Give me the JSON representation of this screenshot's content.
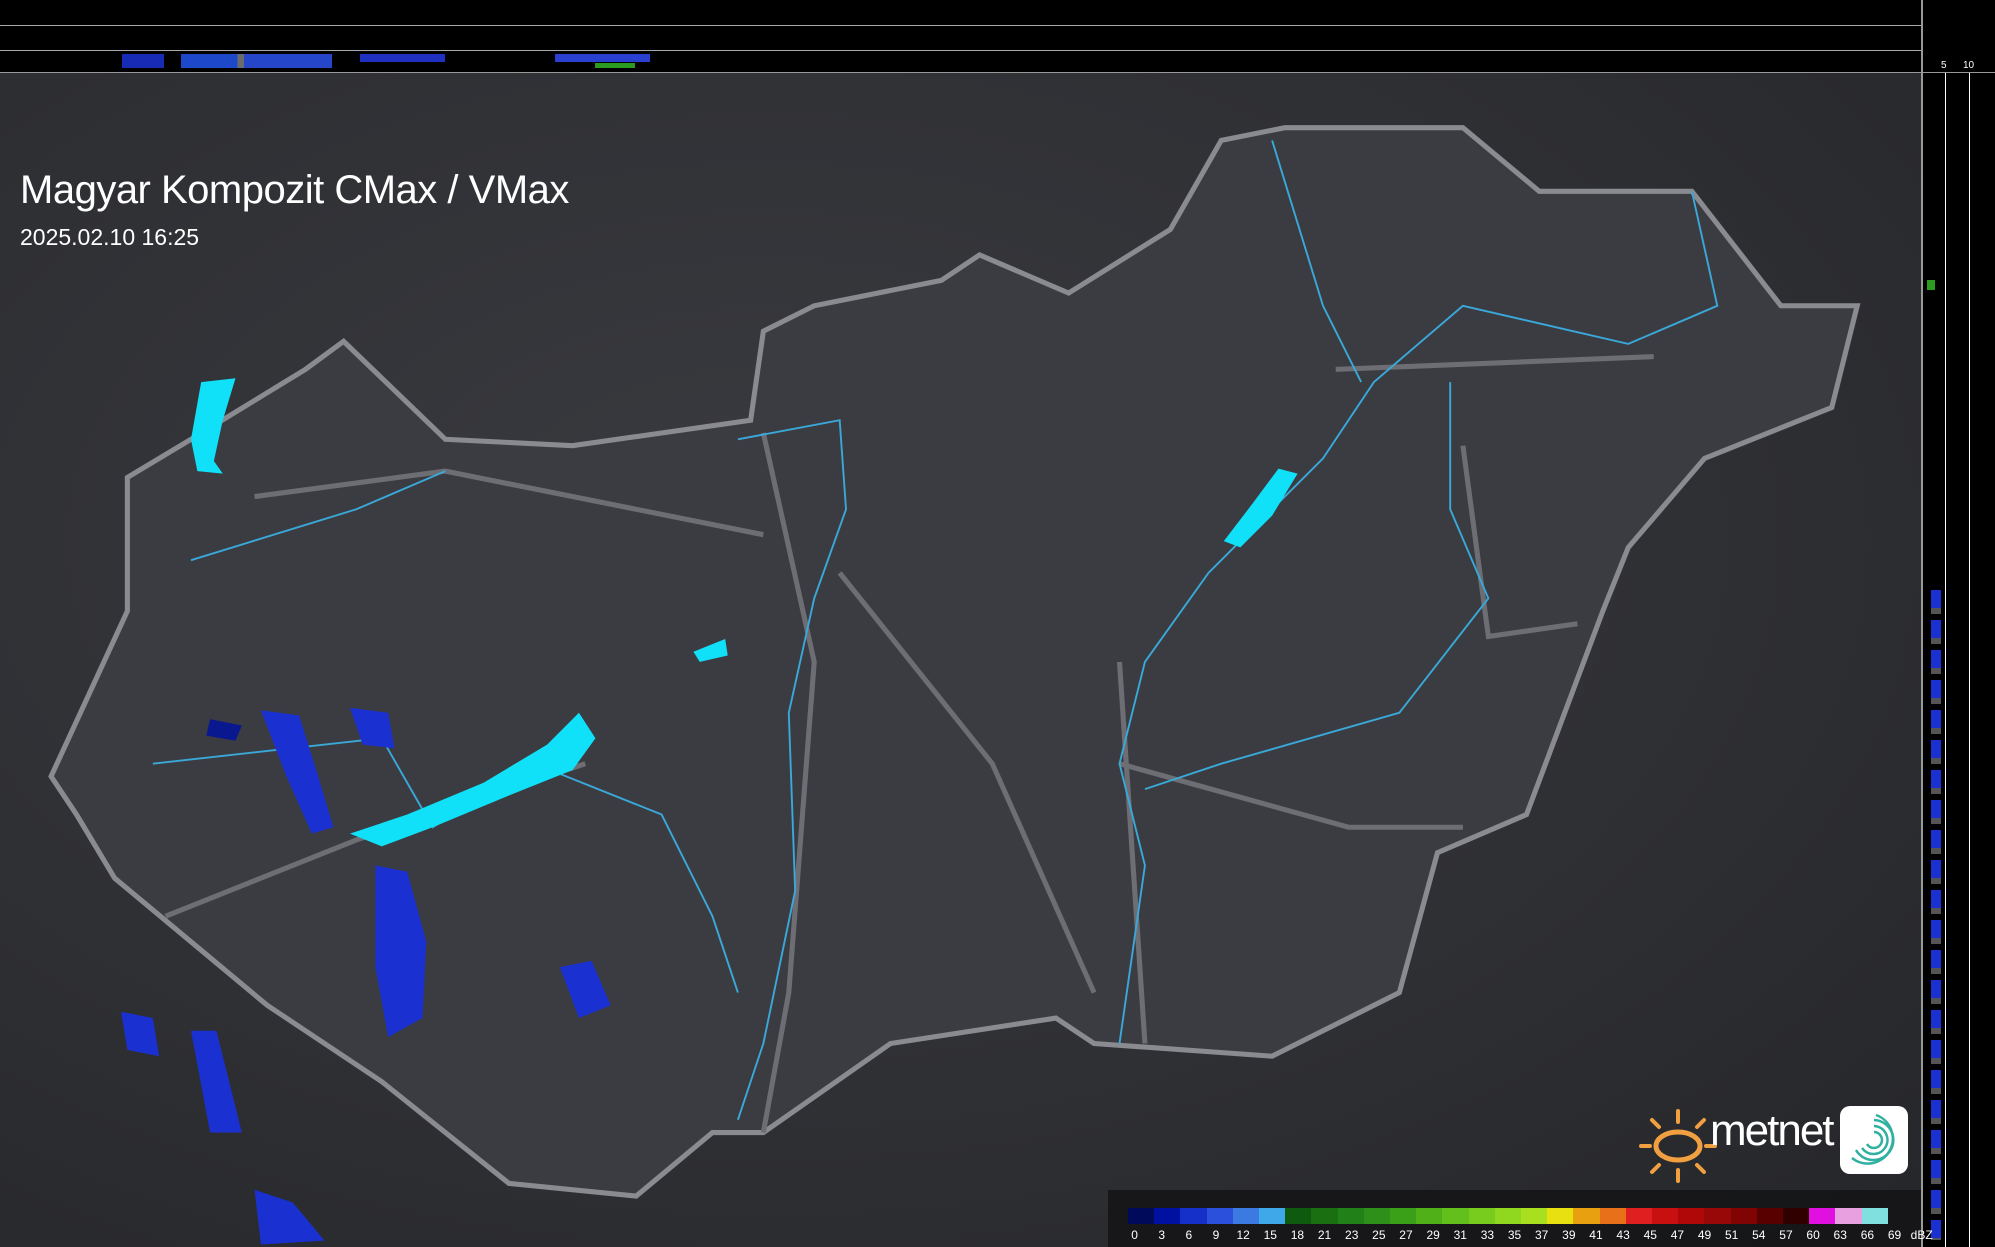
{
  "header": {
    "title": "Magyar Kompozit CMax / VMax",
    "timestamp": "2025.02.10 16:25"
  },
  "profile_axes": {
    "top_ticks": [
      "10",
      "5"
    ],
    "side_ticks": [
      "5",
      "10"
    ]
  },
  "legend": {
    "unit": "dBZ",
    "labels": [
      "0",
      "3",
      "6",
      "9",
      "12",
      "15",
      "18",
      "21",
      "23",
      "25",
      "27",
      "29",
      "31",
      "33",
      "35",
      "37",
      "39",
      "41",
      "43",
      "45",
      "47",
      "49",
      "51",
      "54",
      "57",
      "60",
      "63",
      "66",
      "69"
    ],
    "colors": [
      "#000a5a",
      "#0010a0",
      "#1530c8",
      "#2a50dc",
      "#3b7ae0",
      "#3fa8e8",
      "#0e5a0e",
      "#1a7010",
      "#228018",
      "#2e9018",
      "#3aa018",
      "#50b018",
      "#62bf1c",
      "#78cc1e",
      "#90d820",
      "#a8e020",
      "#e8e010",
      "#e8a010",
      "#e87018",
      "#e02020",
      "#c81010",
      "#b00808",
      "#980808",
      "#800404",
      "#580000",
      "#300000",
      "#e010e0",
      "#e8a0e0",
      "#80e0e0"
    ]
  },
  "branding": {
    "logo_text": "metnet",
    "sun_color": "#f0a040",
    "swirl_color": "#30b0a0"
  },
  "map_colors": {
    "border": "#8a8b90",
    "river": "#3aa8d8",
    "lake": "#10e0f8",
    "radar_light": "#1a30d0",
    "radar_dark": "#0a1890"
  }
}
